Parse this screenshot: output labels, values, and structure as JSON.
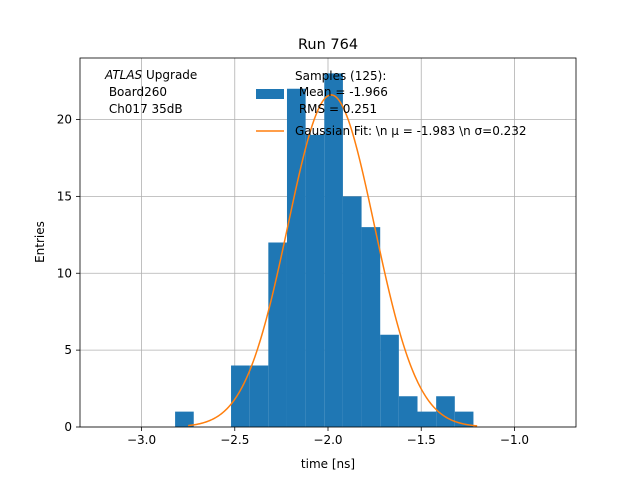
{
  "chart_data": {
    "type": "bar",
    "title": "Run 764",
    "xlabel": "time [ns]",
    "ylabel": "Entries",
    "xlim": [
      -3.33,
      -0.67
    ],
    "ylim": [
      0,
      24
    ],
    "grid": true,
    "x_ticks": [
      -3.0,
      -2.5,
      -2.0,
      -1.5,
      -1.0
    ],
    "x_tick_labels": [
      "−3.0",
      "−2.5",
      "−2.0",
      "−1.5",
      "−1.0"
    ],
    "y_ticks": [
      0,
      5,
      10,
      15,
      20
    ],
    "y_tick_labels": [
      "0",
      "5",
      "10",
      "15",
      "20"
    ],
    "annotation": {
      "italic_part": "ATLAS",
      "line1_rest": " Upgrade",
      "line2": " Board260",
      "line3": " Ch017 35dB"
    },
    "legend": {
      "placement": "top-center",
      "hist_label_lines": [
        "Samples (125):",
        " Mean = -1.966",
        " RMS = 0.251"
      ],
      "fit_label": "Gaussian Fit: \\n μ = -1.983 \\n σ=0.232"
    },
    "histogram": {
      "color": "#1f77b4",
      "bin_width": 0.1,
      "bins": [
        {
          "x0": -2.82,
          "count": 1
        },
        {
          "x0": -2.72,
          "count": 0
        },
        {
          "x0": -2.62,
          "count": 0
        },
        {
          "x0": -2.52,
          "count": 4
        },
        {
          "x0": -2.42,
          "count": 4
        },
        {
          "x0": -2.32,
          "count": 12
        },
        {
          "x0": -2.22,
          "count": 22
        },
        {
          "x0": -2.12,
          "count": 19
        },
        {
          "x0": -2.02,
          "count": 23
        },
        {
          "x0": -1.92,
          "count": 15
        },
        {
          "x0": -1.82,
          "count": 13
        },
        {
          "x0": -1.72,
          "count": 6
        },
        {
          "x0": -1.62,
          "count": 2
        },
        {
          "x0": -1.52,
          "count": 1
        },
        {
          "x0": -1.42,
          "count": 2
        },
        {
          "x0": -1.32,
          "count": 1
        }
      ]
    },
    "fit": {
      "color": "#ff7f0e",
      "mu": -1.983,
      "sigma": 0.232,
      "amplitude": 21.6,
      "x_range": [
        -2.75,
        -1.2
      ]
    }
  }
}
